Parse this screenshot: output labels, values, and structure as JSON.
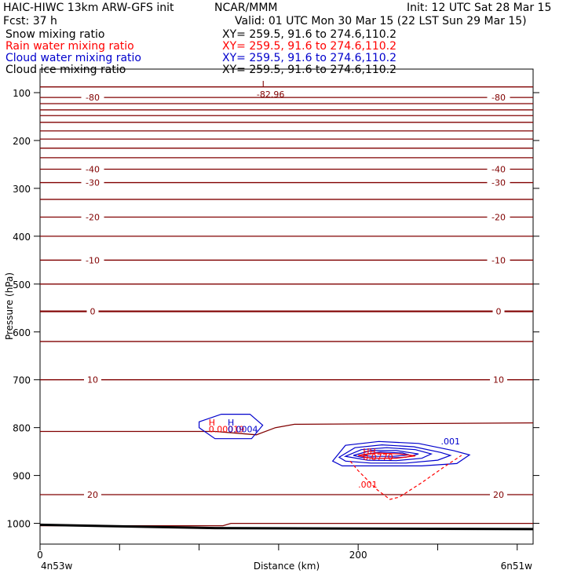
{
  "header": {
    "title": "HAIC-HIWC 13km ARW-GFS init",
    "center": "NCAR/MMM",
    "init": "Init: 12 UTC Sat 28 Mar 15",
    "fcst": "Fcst:   37 h",
    "valid": "Valid: 01 UTC Mon 30 Mar 15 (22 LST Sun 29 Mar 15)",
    "fields": [
      {
        "name": "Snow mixing ratio",
        "xy": "XY= 259.5, 91.6 to 274.6,110.2",
        "color": "#000000"
      },
      {
        "name": "Rain water mixing ratio",
        "xy": "XY= 259.5, 91.6 to 274.6,110.2",
        "color": "#ff0000"
      },
      {
        "name": "Cloud water mixing ratio",
        "xy": "XY= 259.5, 91.6 to 274.6,110.2",
        "color": "#0000cc"
      },
      {
        "name": "Cloud ice mixing ratio",
        "xy": "XY= 259.5, 91.6 to 274.6,110.2",
        "color": "#000000"
      }
    ]
  },
  "chart_data": {
    "type": "line",
    "xlabel": "Distance (km)",
    "ylabel": "Pressure (hPa)",
    "xlim": [
      0,
      310
    ],
    "ylim": [
      1050,
      70
    ],
    "x_ticks": [
      0,
      200
    ],
    "y_ticks": [
      100,
      200,
      300,
      400,
      500,
      600,
      700,
      800,
      900,
      1000
    ],
    "x_end_labels": {
      "left": "4n53w",
      "right": "6n51w"
    },
    "isotherm_color": "#800000",
    "rain_color": "#ff0000",
    "cloud_color": "#0000cc",
    "isotherms": [
      {
        "pressure": 88
      },
      {
        "pressure": 110,
        "label": "-80"
      },
      {
        "pressure": 123
      },
      {
        "pressure": 136
      },
      {
        "pressure": 148
      },
      {
        "pressure": 162
      },
      {
        "pressure": 180
      },
      {
        "pressure": 197
      },
      {
        "pressure": 216
      },
      {
        "pressure": 236
      },
      {
        "pressure": 260,
        "label": "-40"
      },
      {
        "pressure": 288,
        "label": "-30"
      },
      {
        "pressure": 323
      },
      {
        "pressure": 360,
        "label": "-20"
      },
      {
        "pressure": 400
      },
      {
        "pressure": 450,
        "label": "-10"
      },
      {
        "pressure": 500
      },
      {
        "pressure": 557,
        "label": "0",
        "bold": true
      },
      {
        "pressure": 620
      },
      {
        "pressure": 700,
        "label": "10"
      },
      {
        "pressure": 940,
        "label": "20"
      },
      {
        "pressure": 1002
      }
    ],
    "isotherm_808": {
      "points": [
        [
          0,
          808
        ],
        [
          110,
          808
        ],
        [
          136,
          815
        ],
        [
          148,
          800
        ],
        [
          160,
          793
        ],
        [
          310,
          790
        ]
      ]
    },
    "isotherm_1002": {
      "points": [
        [
          0,
          1005
        ],
        [
          115,
          1005
        ],
        [
          120,
          1000
        ],
        [
          310,
          1000
        ]
      ]
    },
    "surface": {
      "points": [
        [
          0,
          1003
        ],
        [
          110,
          1010
        ],
        [
          310,
          1012
        ]
      ]
    },
    "min_label": {
      "text": "L",
      "value": "-82.96",
      "x": 141,
      "p": 98
    },
    "extrema_labels": [
      {
        "text": "H",
        "color": "#ff0000",
        "x": 106,
        "p": 796
      },
      {
        "text": "H",
        "color": "#0000cc",
        "x": 118,
        "p": 796
      },
      {
        "text": "0.00019",
        "color": "#ff0000",
        "x": 106,
        "p": 810
      },
      {
        "text": "0.0004",
        "color": "#0000cc",
        "x": 118,
        "p": 810
      },
      {
        "text": "HH",
        "color": "#ff0000",
        "x": 203,
        "p": 856
      },
      {
        "text": "0.0770",
        "color": "#ff0000",
        "x": 203,
        "p": 868
      }
    ],
    "cloud_contours": [
      {
        "points": [
          [
            100,
            788
          ],
          [
            114,
            772
          ],
          [
            132,
            772
          ],
          [
            140,
            795
          ],
          [
            133,
            823
          ],
          [
            110,
            823
          ],
          [
            100,
            800
          ]
        ]
      },
      {
        "points": [
          [
            184,
            870
          ],
          [
            192,
            837
          ],
          [
            213,
            829
          ],
          [
            238,
            833
          ],
          [
            260,
            848
          ],
          [
            270,
            857
          ],
          [
            262,
            875
          ],
          [
            240,
            880
          ],
          [
            210,
            880
          ],
          [
            190,
            880
          ]
        ]
      },
      {
        "points": [
          [
            188,
            862
          ],
          [
            198,
            842
          ],
          [
            215,
            836
          ],
          [
            235,
            840
          ],
          [
            252,
            852
          ],
          [
            258,
            858
          ],
          [
            250,
            868
          ],
          [
            230,
            874
          ],
          [
            208,
            874
          ],
          [
            192,
            870
          ]
        ]
      },
      {
        "points": [
          [
            192,
            860
          ],
          [
            202,
            846
          ],
          [
            218,
            842
          ],
          [
            236,
            846
          ],
          [
            246,
            855
          ],
          [
            240,
            864
          ],
          [
            224,
            869
          ],
          [
            206,
            868
          ]
        ]
      },
      {
        "points": [
          [
            197,
            858
          ],
          [
            208,
            848
          ],
          [
            224,
            848
          ],
          [
            238,
            855
          ],
          [
            230,
            862
          ],
          [
            214,
            864
          ],
          [
            202,
            862
          ]
        ]
      },
      {
        "points": [
          [
            202,
            857
          ],
          [
            214,
            851
          ],
          [
            228,
            853
          ],
          [
            232,
            857
          ],
          [
            222,
            860
          ],
          [
            208,
            860
          ]
        ]
      }
    ],
    "cloud_label": {
      "text": ".001",
      "x": 252,
      "p": 835
    },
    "rain_contours": [
      {
        "dashed": true,
        "points": [
          [
            195,
            870
          ],
          [
            200,
            890
          ],
          [
            212,
            930
          ],
          [
            220,
            950
          ],
          [
            226,
            945
          ],
          [
            240,
            915
          ],
          [
            255,
            880
          ],
          [
            265,
            858
          ]
        ]
      }
    ],
    "rain_label": {
      "text": ".001",
      "x": 200,
      "p": 925
    },
    "rain_core": {
      "points": [
        [
          200,
          858
        ],
        [
          212,
          853
        ],
        [
          226,
          855
        ],
        [
          236,
          859
        ],
        [
          224,
          864
        ],
        [
          208,
          864
        ]
      ]
    }
  }
}
